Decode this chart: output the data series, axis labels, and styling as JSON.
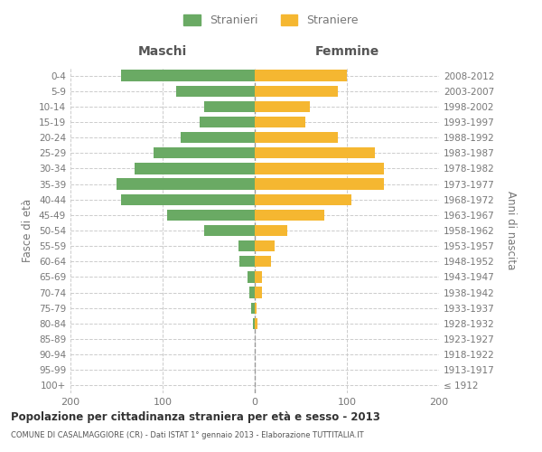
{
  "age_groups": [
    "100+",
    "95-99",
    "90-94",
    "85-89",
    "80-84",
    "75-79",
    "70-74",
    "65-69",
    "60-64",
    "55-59",
    "50-54",
    "45-49",
    "40-44",
    "35-39",
    "30-34",
    "25-29",
    "20-24",
    "15-19",
    "10-14",
    "5-9",
    "0-4"
  ],
  "birth_years": [
    "≤ 1912",
    "1913-1917",
    "1918-1922",
    "1923-1927",
    "1928-1932",
    "1933-1937",
    "1938-1942",
    "1943-1947",
    "1948-1952",
    "1953-1957",
    "1958-1962",
    "1963-1967",
    "1968-1972",
    "1973-1977",
    "1978-1982",
    "1983-1987",
    "1988-1992",
    "1993-1997",
    "1998-2002",
    "2003-2007",
    "2008-2012"
  ],
  "maschi": [
    0,
    0,
    0,
    0,
    2,
    4,
    6,
    8,
    17,
    18,
    55,
    95,
    145,
    150,
    130,
    110,
    80,
    60,
    55,
    85,
    145
  ],
  "femmine": [
    0,
    0,
    0,
    0,
    3,
    2,
    8,
    8,
    18,
    22,
    35,
    75,
    105,
    140,
    140,
    130,
    90,
    55,
    60,
    90,
    100
  ],
  "color_maschi": "#6aaa64",
  "color_femmine": "#f5b731",
  "xlim": 200,
  "title": "Popolazione per cittadinanza straniera per età e sesso - 2013",
  "subtitle": "COMUNE DI CASALMAGGIORE (CR) - Dati ISTAT 1° gennaio 2013 - Elaborazione TUTTITALIA.IT",
  "ylabel_left": "Fasce di età",
  "ylabel_right": "Anni di nascita",
  "header_left": "Maschi",
  "header_right": "Femmine",
  "legend_maschi": "Stranieri",
  "legend_femmine": "Straniere",
  "bg_color": "#ffffff",
  "grid_color": "#cccccc",
  "label_color": "#777777"
}
